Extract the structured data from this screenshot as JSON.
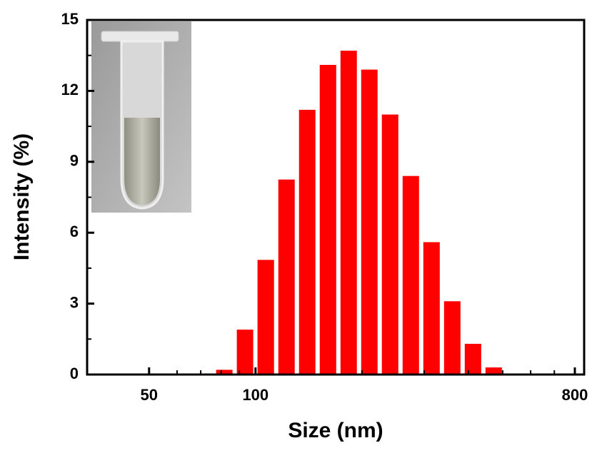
{
  "chart_data": {
    "type": "histogram",
    "xlabel": "Size (nm)",
    "ylabel": "Intensity (%)",
    "bins": [
      76.3,
      87.3,
      99.9,
      114.4,
      130.9,
      149.8,
      171.5,
      196.2,
      224.5,
      257.0,
      294.1,
      336.6,
      385.2,
      440.9,
      504.6
    ],
    "values": [
      0.2,
      1.9,
      4.85,
      8.25,
      11.2,
      13.1,
      13.7,
      12.9,
      11.0,
      8.4,
      5.6,
      3.1,
      1.3,
      0.3
    ],
    "color": "#ff0000",
    "xscale": "log",
    "xlim": [
      33.4,
      850
    ],
    "xticks": [
      50,
      100,
      800
    ],
    "xminorticks": [
      60,
      70,
      80,
      90,
      200,
      300,
      400,
      500,
      600,
      700
    ],
    "ylim": [
      0,
      15
    ],
    "yticks": [
      0,
      3,
      6,
      9,
      12,
      15
    ],
    "yminorticks": [
      1.5,
      4.5,
      7.5,
      10.5,
      13.5
    ]
  }
}
